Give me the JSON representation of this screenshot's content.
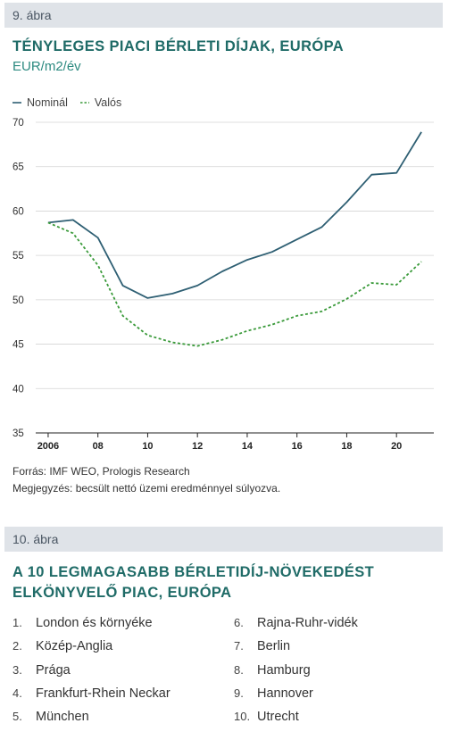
{
  "figure9": {
    "label": "9. ábra",
    "title": "TÉNYLEGES PIACI BÉRLETI DÍJAK, EURÓPA",
    "subtitle": "EUR/m2/év",
    "source": "Forrás: IMF WEO, Prologis Research",
    "note": "Megjegyzés: becsült nettó üzemi eredménnyel súlyozva."
  },
  "chart_data": {
    "type": "line",
    "title": "TÉNYLEGES PIACI BÉRLETI DÍJAK, EURÓPA",
    "ylabel": "EUR/m2/év",
    "xlim": [
      2005.5,
      2021.5
    ],
    "ylim": [
      35,
      70
    ],
    "yticks": [
      35,
      40,
      45,
      50,
      55,
      60,
      65,
      70
    ],
    "xticks": [
      2006,
      2008,
      2010,
      2012,
      2014,
      2016,
      2018,
      2020
    ],
    "xtick_labels": [
      "2006",
      "08",
      "10",
      "12",
      "14",
      "16",
      "18",
      "20"
    ],
    "grid": "horizontal",
    "legend": "top-left",
    "x": [
      2006,
      2007,
      2008,
      2009,
      2010,
      2011,
      2012,
      2013,
      2014,
      2015,
      2016,
      2017,
      2018,
      2019,
      2020,
      2021
    ],
    "series": [
      {
        "name": "Nominál",
        "color": "#2e5f73",
        "style": "solid",
        "values": [
          58.7,
          59.0,
          57.0,
          51.6,
          50.2,
          50.7,
          51.6,
          53.2,
          54.5,
          55.4,
          56.8,
          58.2,
          61.0,
          64.1,
          64.3,
          68.9
        ]
      },
      {
        "name": "Valós",
        "color": "#3a9a3a",
        "style": "dashed",
        "values": [
          58.7,
          57.5,
          53.9,
          48.2,
          46.0,
          45.2,
          44.8,
          45.5,
          46.5,
          47.2,
          48.2,
          48.7,
          50.1,
          51.9,
          51.7,
          54.3
        ]
      }
    ]
  },
  "figure10": {
    "label": "10. ábra",
    "title_line1": "A 10 LEGMAGASABB BÉRLETIDÍJ-NÖVEKEDÉST",
    "title_line2": "ELKÖNYVELŐ PIAC, EURÓPA",
    "items": [
      {
        "num": "1.",
        "name": "London és környéke"
      },
      {
        "num": "2.",
        "name": "Közép-Anglia"
      },
      {
        "num": "3.",
        "name": "Prága"
      },
      {
        "num": "4.",
        "name": "Frankfurt-Rhein Neckar"
      },
      {
        "num": "5.",
        "name": "München"
      },
      {
        "num": "6.",
        "name": "Rajna-Ruhr-vidék"
      },
      {
        "num": "7.",
        "name": "Berlin"
      },
      {
        "num": "8.",
        "name": "Hamburg"
      },
      {
        "num": "9.",
        "name": "Hannover"
      },
      {
        "num": "10.",
        "name": "Utrecht"
      }
    ]
  }
}
